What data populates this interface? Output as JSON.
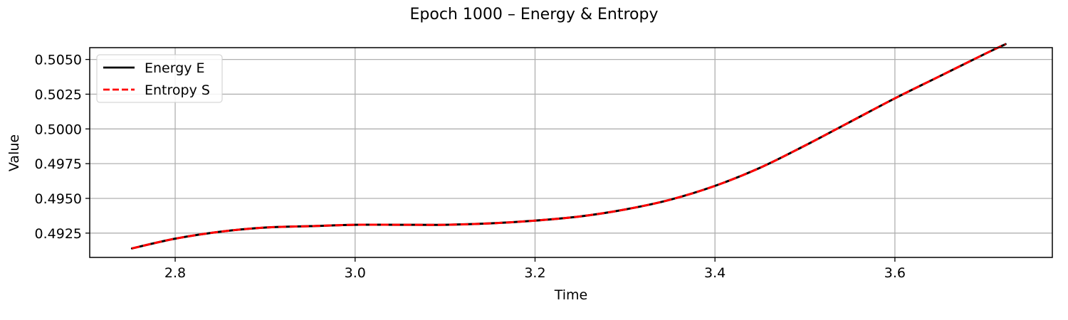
{
  "chart_data": {
    "type": "line",
    "title": "Epoch 1000 – Energy & Entropy",
    "xlabel": "Time",
    "ylabel": "Value",
    "xlim": [
      2.705,
      3.775
    ],
    "ylim": [
      0.49075,
      0.50585
    ],
    "xticks": [
      2.8,
      3.0,
      3.2,
      3.4,
      3.6
    ],
    "xtick_labels": [
      "2.8",
      "3.0",
      "3.2",
      "3.4",
      "3.6"
    ],
    "yticks": [
      0.4925,
      0.495,
      0.4975,
      0.5,
      0.5025,
      0.505
    ],
    "ytick_labels": [
      "0.4925",
      "0.4950",
      "0.4975",
      "0.5000",
      "0.5025",
      "0.5050"
    ],
    "grid": true,
    "legend_position": "upper-left",
    "x": [
      2.752,
      2.8,
      2.85,
      2.9,
      2.95,
      3.0,
      3.05,
      3.1,
      3.15,
      3.2,
      3.25,
      3.3,
      3.35,
      3.4,
      3.45,
      3.5,
      3.55,
      3.6,
      3.65,
      3.7,
      3.723
    ],
    "series": [
      {
        "name": "Energy E",
        "color": "#000000",
        "style": "solid",
        "values": [
          0.4914,
          0.4921,
          0.4926,
          0.4929,
          0.493,
          0.4931,
          0.4931,
          0.4931,
          0.4932,
          0.4934,
          0.4937,
          0.4942,
          0.4949,
          0.4959,
          0.4972,
          0.4988,
          0.5005,
          0.5022,
          0.5038,
          0.5054,
          0.5061
        ]
      },
      {
        "name": "Entropy S",
        "color": "#ff0000",
        "style": "dashed",
        "values": [
          0.4914,
          0.4921,
          0.4926,
          0.4929,
          0.493,
          0.4931,
          0.4931,
          0.4931,
          0.4932,
          0.4934,
          0.4937,
          0.4942,
          0.4949,
          0.4959,
          0.4972,
          0.4988,
          0.5005,
          0.5022,
          0.5038,
          0.5054,
          0.5061
        ]
      }
    ]
  }
}
